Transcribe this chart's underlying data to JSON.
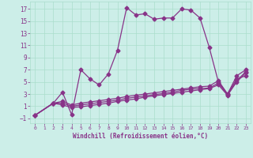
{
  "title": "",
  "xlabel": "Windchill (Refroidissement éolien,°C)",
  "background_color": "#cceee8",
  "grid_color": "#aaddcc",
  "line_color": "#883388",
  "xlim": [
    -0.5,
    23.5
  ],
  "ylim": [
    -1.8,
    18.2
  ],
  "xticks": [
    0,
    1,
    2,
    3,
    4,
    5,
    6,
    7,
    8,
    9,
    10,
    11,
    12,
    13,
    14,
    15,
    16,
    17,
    18,
    19,
    20,
    21,
    22,
    23
  ],
  "yticks": [
    -1,
    1,
    3,
    5,
    7,
    9,
    11,
    13,
    15,
    17
  ],
  "series": [
    {
      "x": [
        0,
        2,
        3,
        4,
        5,
        6,
        7,
        8,
        9,
        10,
        11,
        12,
        13,
        14,
        15,
        16,
        17,
        18,
        19,
        20,
        21,
        22,
        23
      ],
      "y": [
        -0.5,
        1.5,
        3.3,
        -0.4,
        7.0,
        5.5,
        4.5,
        6.3,
        10.2,
        17.2,
        16.0,
        16.2,
        15.3,
        15.5,
        15.5,
        17.0,
        16.8,
        15.5,
        10.7,
        5.0,
        3.0,
        6.0,
        7.0
      ],
      "marker": "D",
      "markersize": 2.5,
      "linewidth": 0.9
    },
    {
      "x": [
        0,
        2,
        3,
        4,
        5,
        6,
        7,
        8,
        9,
        10,
        11,
        12,
        13,
        14,
        15,
        16,
        17,
        18,
        19,
        20,
        21,
        22,
        23
      ],
      "y": [
        -0.5,
        1.5,
        1.8,
        1.2,
        1.5,
        1.7,
        1.9,
        2.1,
        2.3,
        2.6,
        2.8,
        3.0,
        3.2,
        3.4,
        3.6,
        3.8,
        4.0,
        4.2,
        4.3,
        5.2,
        3.0,
        5.5,
        6.0
      ],
      "marker": "D",
      "markersize": 2.5,
      "linewidth": 0.9
    },
    {
      "x": [
        0,
        2,
        3,
        4,
        5,
        6,
        7,
        8,
        9,
        10,
        11,
        12,
        13,
        14,
        15,
        16,
        17,
        18,
        19,
        20,
        21,
        22,
        23
      ],
      "y": [
        -0.5,
        1.5,
        1.5,
        1.0,
        1.2,
        1.4,
        1.6,
        1.8,
        2.0,
        2.3,
        2.5,
        2.7,
        2.9,
        3.1,
        3.3,
        3.6,
        3.8,
        3.9,
        4.0,
        4.8,
        2.9,
        5.2,
        6.7
      ],
      "marker": "D",
      "markersize": 2.5,
      "linewidth": 0.9
    },
    {
      "x": [
        0,
        2,
        3,
        4,
        5,
        6,
        7,
        8,
        9,
        10,
        11,
        12,
        13,
        14,
        15,
        16,
        17,
        18,
        19,
        20,
        21,
        22,
        23
      ],
      "y": [
        -0.5,
        1.5,
        1.2,
        0.8,
        0.9,
        1.1,
        1.3,
        1.5,
        1.8,
        2.0,
        2.2,
        2.5,
        2.7,
        2.9,
        3.1,
        3.3,
        3.5,
        3.7,
        3.9,
        4.5,
        2.8,
        5.0,
        6.5
      ],
      "marker": "D",
      "markersize": 2.5,
      "linewidth": 0.9
    }
  ]
}
